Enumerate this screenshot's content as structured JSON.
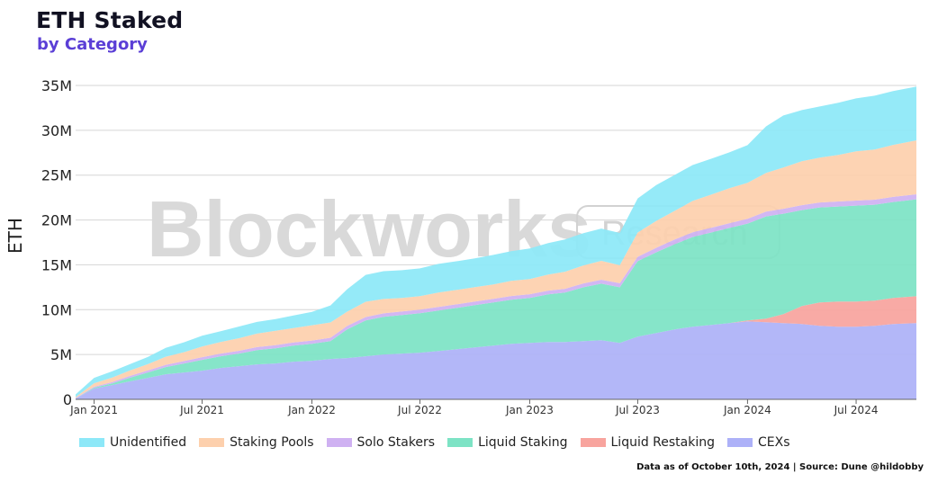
{
  "title": "ETH Staked",
  "subtitle": "by Category",
  "source_note": "Data as of October 10th, 2024 | Source: Dune @hildobby",
  "watermark": {
    "main": "Blockworks",
    "badge": "Research"
  },
  "chart_data": {
    "type": "area",
    "stacked": true,
    "title": "ETH Staked",
    "subtitle": "by Category",
    "xlabel": "",
    "ylabel": "ETH",
    "ylim": [
      0,
      35000000
    ],
    "yticks": [
      0,
      5000000,
      10000000,
      15000000,
      20000000,
      25000000,
      30000000,
      35000000
    ],
    "ytick_labels": [
      "0",
      "5M",
      "10M",
      "15M",
      "20M",
      "25M",
      "30M",
      "35M"
    ],
    "xticks": [
      "2021-01-01",
      "2021-07-01",
      "2022-01-01",
      "2022-07-01",
      "2023-01-01",
      "2023-07-01",
      "2024-01-01",
      "2024-07-01"
    ],
    "xtick_labels": [
      "Jan 2021",
      "Jul 2021",
      "Jan 2022",
      "Jul 2022",
      "Jan 2023",
      "Jul 2023",
      "Jan 2024",
      "Jul 2024"
    ],
    "grid": "horizontal",
    "legend_position": "bottom",
    "x": [
      "2020-12-01",
      "2021-01-01",
      "2021-02-01",
      "2021-03-01",
      "2021-04-01",
      "2021-05-01",
      "2021-06-01",
      "2021-07-01",
      "2021-08-01",
      "2021-09-01",
      "2021-10-01",
      "2021-11-01",
      "2021-12-01",
      "2022-01-01",
      "2022-02-01",
      "2022-03-01",
      "2022-04-01",
      "2022-05-01",
      "2022-06-01",
      "2022-07-01",
      "2022-08-01",
      "2022-09-01",
      "2022-10-01",
      "2022-11-01",
      "2022-12-01",
      "2023-01-01",
      "2023-02-01",
      "2023-03-01",
      "2023-04-01",
      "2023-05-01",
      "2023-06-01",
      "2023-07-01",
      "2023-08-01",
      "2023-09-01",
      "2023-10-01",
      "2023-11-01",
      "2023-12-01",
      "2024-01-01",
      "2024-02-01",
      "2024-03-01",
      "2024-04-01",
      "2024-05-01",
      "2024-06-01",
      "2024-07-01",
      "2024-08-01",
      "2024-09-01",
      "2024-10-10"
    ],
    "series": [
      {
        "name": "CEXs",
        "color": "#adb1f8",
        "values": [
          0.1,
          1.2,
          1.6,
          2.0,
          2.4,
          2.8,
          3.0,
          3.2,
          3.5,
          3.7,
          3.9,
          4.0,
          4.2,
          4.3,
          4.5,
          4.6,
          4.8,
          5.0,
          5.1,
          5.2,
          5.4,
          5.6,
          5.8,
          6.0,
          6.2,
          6.3,
          6.4,
          6.4,
          6.5,
          6.6,
          6.3,
          7.0,
          7.4,
          7.8,
          8.1,
          8.3,
          8.5,
          8.7,
          8.6,
          8.5,
          8.4,
          8.2,
          8.1,
          8.1,
          8.2,
          8.4,
          8.5
        ]
      },
      {
        "name": "Liquid Restaking",
        "color": "#f8a49e",
        "values": [
          0,
          0,
          0,
          0,
          0,
          0,
          0,
          0,
          0,
          0,
          0,
          0,
          0,
          0,
          0,
          0,
          0,
          0,
          0,
          0,
          0,
          0,
          0,
          0,
          0,
          0,
          0,
          0,
          0,
          0,
          0,
          0,
          0,
          0,
          0,
          0,
          0,
          0.1,
          0.4,
          1.0,
          2.0,
          2.6,
          2.8,
          2.8,
          2.8,
          2.9,
          3.0
        ]
      },
      {
        "name": "Liquid Staking",
        "color": "#7de3c5",
        "values": [
          0,
          0.1,
          0.2,
          0.4,
          0.6,
          0.8,
          1.0,
          1.2,
          1.3,
          1.4,
          1.6,
          1.7,
          1.8,
          1.9,
          2.0,
          3.2,
          4.0,
          4.2,
          4.3,
          4.4,
          4.5,
          4.6,
          4.7,
          4.8,
          4.9,
          5.0,
          5.3,
          5.5,
          6.0,
          6.3,
          6.2,
          8.4,
          9.0,
          9.5,
          10.0,
          10.3,
          10.6,
          10.8,
          11.4,
          11.2,
          10.7,
          10.6,
          10.6,
          10.7,
          10.7,
          10.7,
          10.8
        ]
      },
      {
        "name": "Solo Stakers",
        "color": "#cfb1f2",
        "values": [
          0.05,
          0.1,
          0.15,
          0.2,
          0.22,
          0.25,
          0.27,
          0.3,
          0.3,
          0.32,
          0.33,
          0.35,
          0.35,
          0.36,
          0.37,
          0.38,
          0.38,
          0.39,
          0.4,
          0.4,
          0.4,
          0.4,
          0.41,
          0.41,
          0.42,
          0.42,
          0.42,
          0.43,
          0.43,
          0.44,
          0.45,
          0.5,
          0.5,
          0.52,
          0.52,
          0.53,
          0.53,
          0.54,
          0.54,
          0.55,
          0.55,
          0.55,
          0.56,
          0.56,
          0.56,
          0.57,
          0.57
        ]
      },
      {
        "name": "Staking Pools",
        "color": "#fdd0ad",
        "values": [
          0.1,
          0.4,
          0.5,
          0.6,
          0.7,
          0.9,
          1.0,
          1.2,
          1.3,
          1.4,
          1.5,
          1.6,
          1.6,
          1.7,
          1.7,
          1.6,
          1.7,
          1.6,
          1.5,
          1.5,
          1.6,
          1.6,
          1.6,
          1.6,
          1.7,
          1.7,
          1.8,
          1.9,
          2.0,
          2.1,
          2.0,
          2.7,
          3.0,
          3.2,
          3.5,
          3.7,
          3.9,
          4.0,
          4.3,
          4.6,
          4.9,
          5.0,
          5.2,
          5.5,
          5.6,
          5.8,
          6.0
        ]
      },
      {
        "name": "Unidentified",
        "color": "#8de8f8",
        "values": [
          0.3,
          0.6,
          0.7,
          0.7,
          0.8,
          1.0,
          1.1,
          1.2,
          1.2,
          1.3,
          1.3,
          1.3,
          1.4,
          1.5,
          1.9,
          2.5,
          3.0,
          3.1,
          3.1,
          3.1,
          3.2,
          3.2,
          3.2,
          3.3,
          3.3,
          3.4,
          3.5,
          3.6,
          3.6,
          3.6,
          3.6,
          3.8,
          4.0,
          4.0,
          4.0,
          4.0,
          4.0,
          4.2,
          5.2,
          5.8,
          5.7,
          5.7,
          5.8,
          5.9,
          6.0,
          6.0,
          6.0
        ]
      }
    ],
    "units_multiplier": 1000000
  },
  "legend_order": [
    "Unidentified",
    "Staking Pools",
    "Solo Stakers",
    "Liquid Staking",
    "Liquid Restaking",
    "CEXs"
  ]
}
